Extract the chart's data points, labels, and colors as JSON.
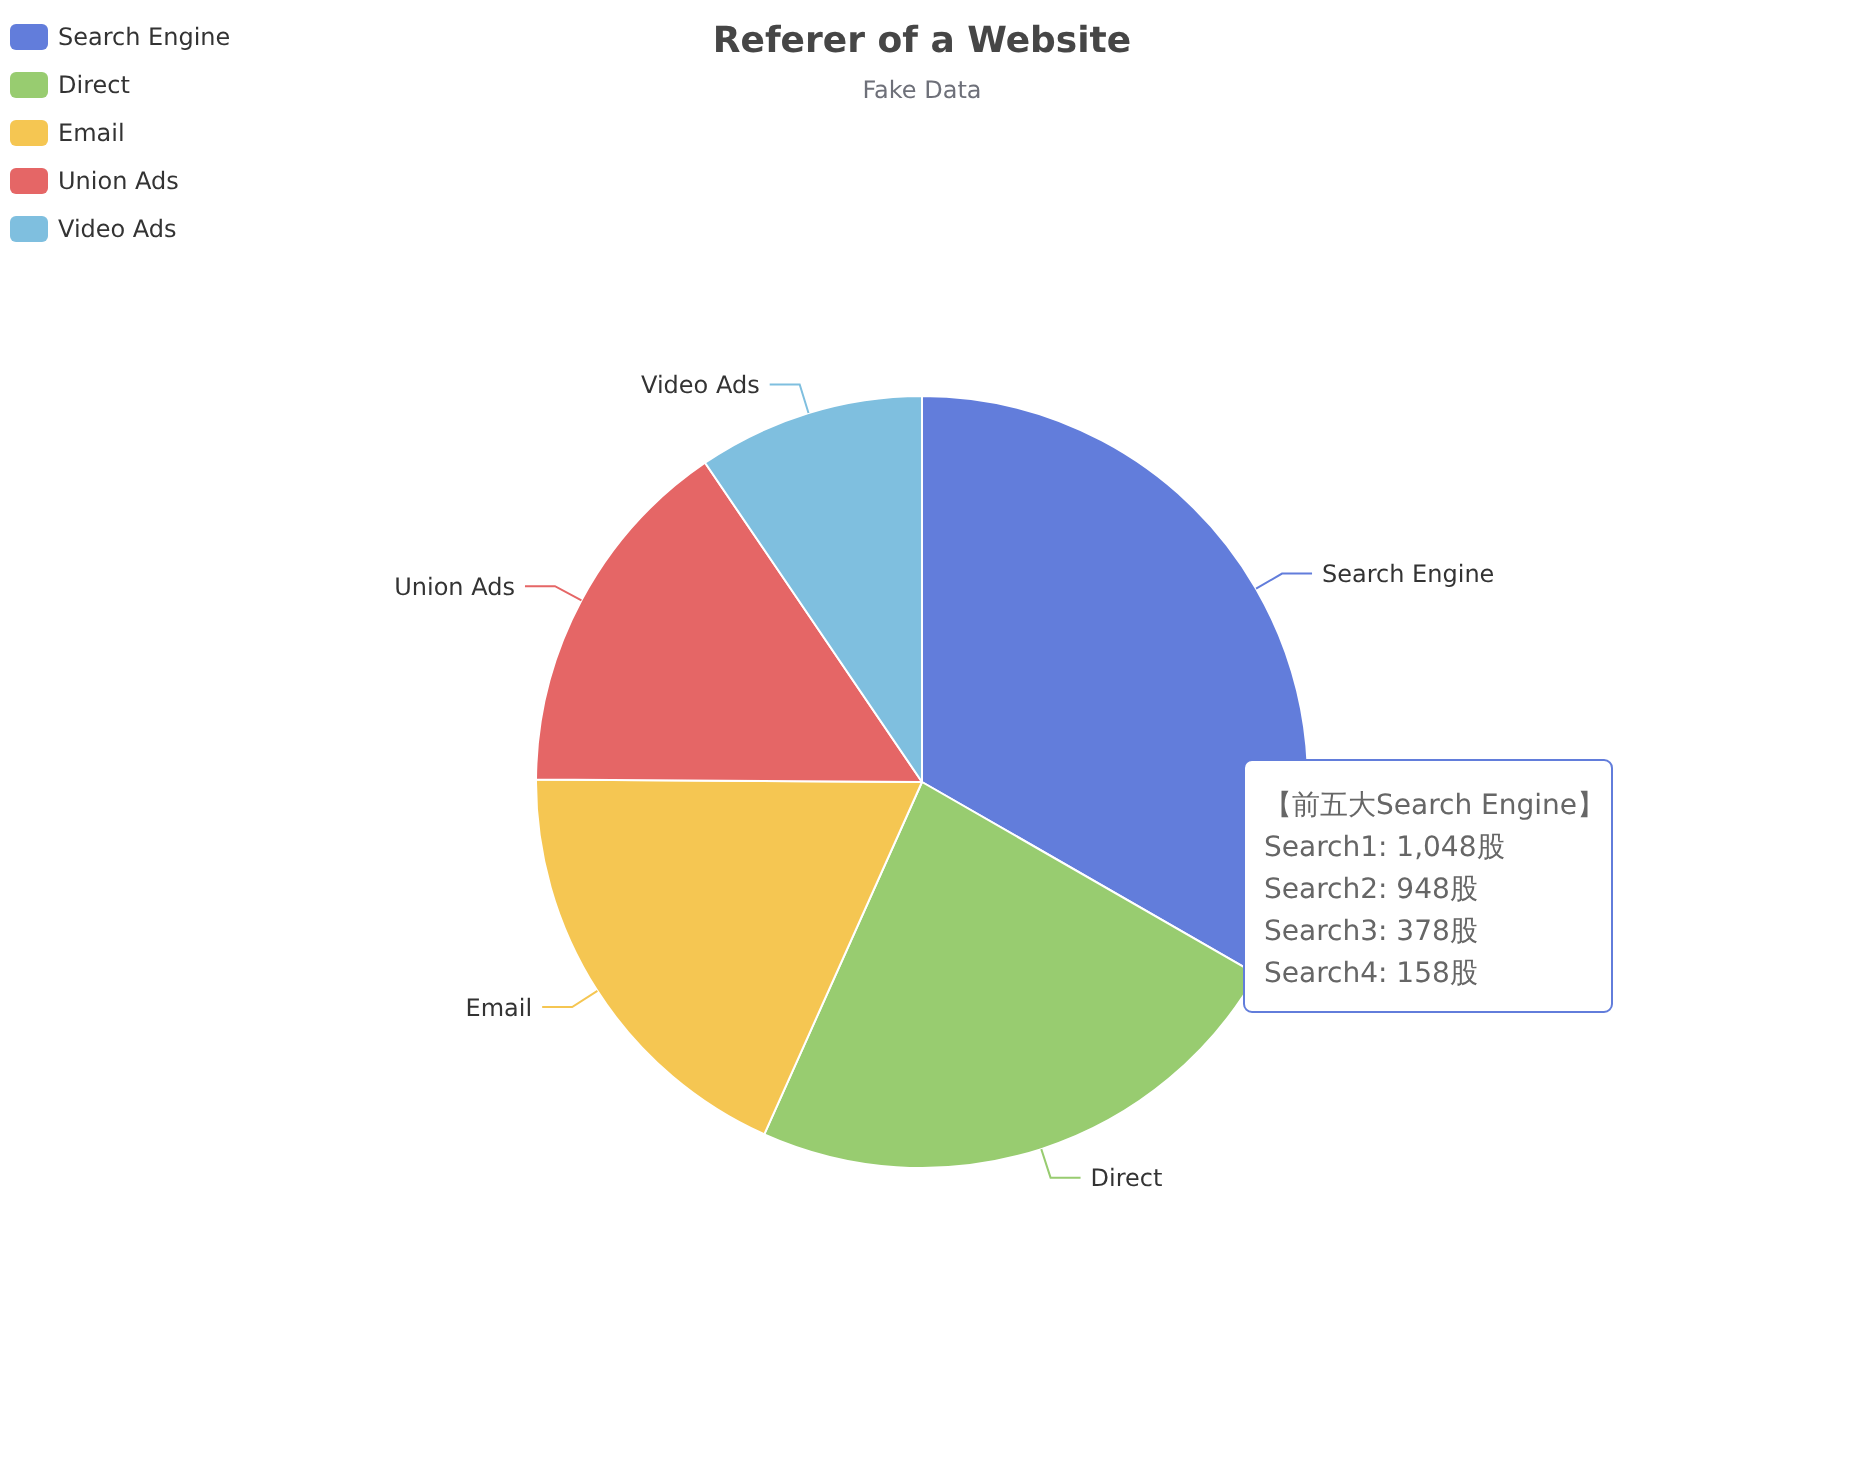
{
  "chart_data": {
    "type": "pie",
    "title": "Referer of a Website",
    "subtitle": "Fake Data",
    "categories": [
      "Search Engine",
      "Direct",
      "Email",
      "Union Ads",
      "Video Ads"
    ],
    "values": [
      33.3,
      23.4,
      18.4,
      15.4,
      9.5
    ],
    "colors": [
      "#627ddb",
      "#98cc70",
      "#f5c652",
      "#e56666",
      "#7fbfdf"
    ],
    "legend": "top left",
    "annotations": [
      "【前五大Search Engine】",
      "Search1: 1,048股",
      "Search2: 948股",
      "Search3: 378股",
      "Search4: 158股"
    ]
  }
}
